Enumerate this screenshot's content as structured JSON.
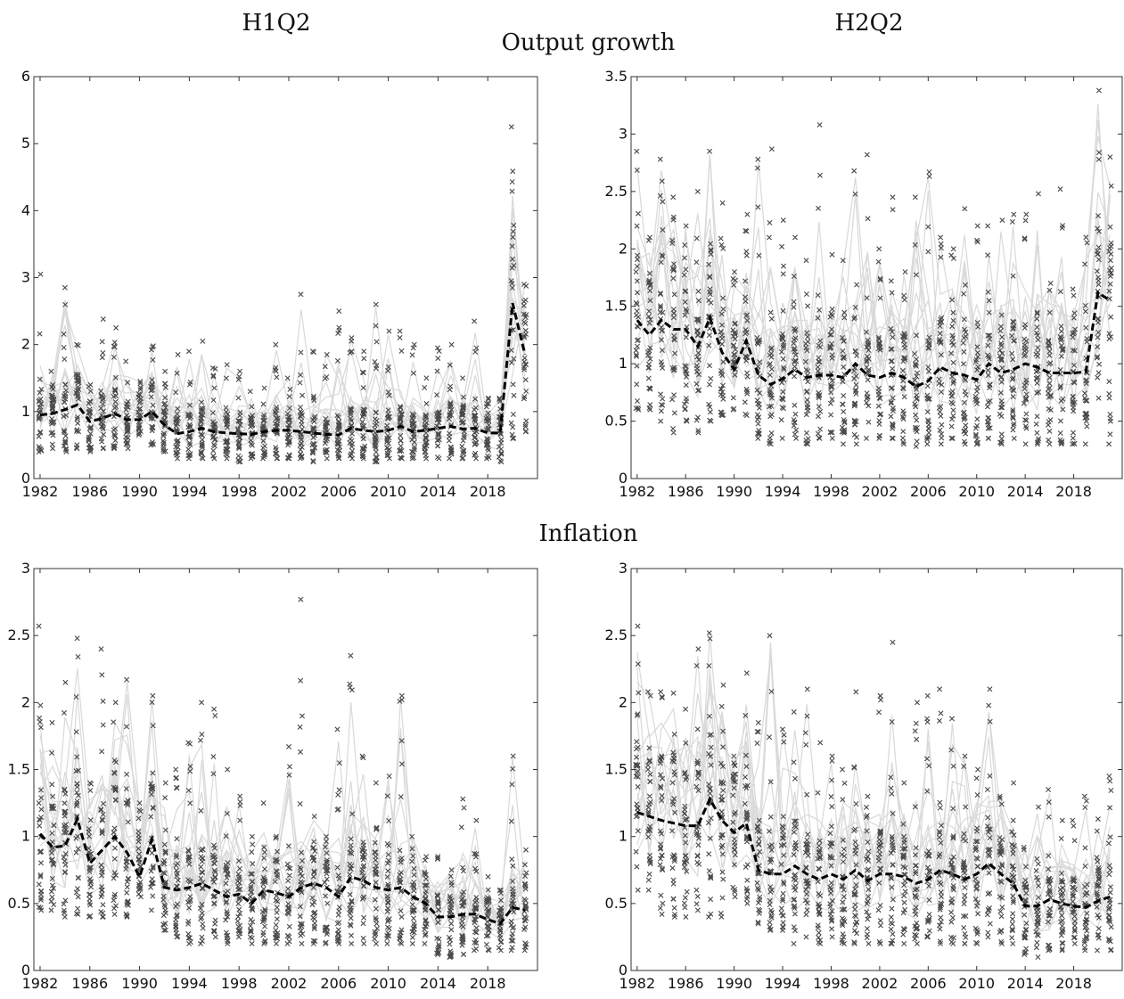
{
  "titles": {
    "col_left": "H1Q2",
    "col_right": "H2Q2",
    "row_top": "Output growth",
    "row_bottom": "Inflation"
  },
  "chart_data": [
    {
      "type": "line",
      "panel": "H1Q2 Output growth",
      "xlim": [
        1981.5,
        2022
      ],
      "ylim": [
        0,
        6
      ],
      "xticks": [
        "1982",
        "1986",
        "1990",
        "1994",
        "1998",
        "2002",
        "2006",
        "2010",
        "2014",
        "2018"
      ],
      "yticks": [
        "0",
        "1",
        "2",
        "3",
        "4",
        "5",
        "6"
      ],
      "x": [
        1982,
        1983,
        1984,
        1985,
        1986,
        1987,
        1988,
        1989,
        1990,
        1991,
        1992,
        1993,
        1994,
        1995,
        1996,
        1997,
        1998,
        1999,
        2000,
        2001,
        2002,
        2003,
        2004,
        2005,
        2006,
        2007,
        2008,
        2009,
        2010,
        2011,
        2012,
        2013,
        2014,
        2015,
        2016,
        2017,
        2018,
        2019,
        2020,
        2021
      ],
      "median": [
        0.95,
        0.97,
        1.03,
        1.1,
        0.85,
        0.9,
        0.97,
        0.88,
        0.88,
        1.0,
        0.8,
        0.67,
        0.7,
        0.75,
        0.7,
        0.68,
        0.67,
        0.66,
        0.7,
        0.72,
        0.72,
        0.7,
        0.68,
        0.66,
        0.65,
        0.75,
        0.72,
        0.7,
        0.72,
        0.78,
        0.7,
        0.72,
        0.75,
        0.78,
        0.74,
        0.75,
        0.68,
        0.68,
        2.62,
        1.85
      ],
      "low": [
        0.4,
        0.45,
        0.4,
        0.45,
        0.4,
        0.45,
        0.45,
        0.45,
        0.65,
        0.5,
        0.4,
        0.3,
        0.3,
        0.3,
        0.3,
        0.3,
        0.25,
        0.3,
        0.3,
        0.3,
        0.3,
        0.3,
        0.25,
        0.3,
        0.3,
        0.3,
        0.3,
        0.25,
        0.3,
        0.3,
        0.3,
        0.3,
        0.3,
        0.3,
        0.3,
        0.3,
        0.3,
        0.25,
        0.6,
        0.7
      ],
      "high": [
        3.05,
        1.6,
        2.85,
        2.0,
        1.4,
        2.38,
        2.25,
        1.75,
        1.45,
        1.98,
        1.6,
        1.85,
        1.9,
        2.05,
        1.65,
        1.7,
        1.6,
        1.3,
        1.35,
        2.0,
        1.5,
        2.75,
        1.9,
        1.85,
        2.5,
        2.1,
        1.9,
        2.6,
        2.2,
        2.2,
        2.0,
        1.5,
        1.95,
        2.0,
        1.5,
        2.35,
        1.2,
        1.2,
        5.25,
        2.9
      ]
    },
    {
      "type": "line",
      "panel": "H2Q2 Output growth",
      "xlim": [
        1981.5,
        2022
      ],
      "ylim": [
        0,
        3.5
      ],
      "xticks": [
        "1982",
        "1986",
        "1990",
        "1994",
        "1998",
        "2002",
        "2006",
        "2010",
        "2014",
        "2018"
      ],
      "yticks": [
        "0",
        "0.5",
        "1",
        "1.5",
        "2",
        "2.5",
        "3",
        "3.5"
      ],
      "x": [
        1982,
        1983,
        1984,
        1985,
        1986,
        1987,
        1988,
        1989,
        1990,
        1991,
        1992,
        1993,
        1994,
        1995,
        1996,
        1997,
        1998,
        1999,
        2000,
        2001,
        2002,
        2003,
        2004,
        2005,
        2006,
        2007,
        2008,
        2009,
        2010,
        2011,
        2012,
        2013,
        2014,
        2015,
        2016,
        2017,
        2018,
        2019,
        2020,
        2021
      ],
      "median": [
        1.38,
        1.25,
        1.38,
        1.3,
        1.3,
        1.15,
        1.4,
        1.1,
        0.95,
        1.2,
        0.9,
        0.82,
        0.87,
        0.95,
        0.88,
        0.9,
        0.9,
        0.88,
        1.0,
        0.9,
        0.88,
        0.92,
        0.88,
        0.8,
        0.85,
        0.97,
        0.92,
        0.9,
        0.86,
        1.0,
        0.92,
        0.95,
        1.0,
        0.97,
        0.92,
        0.92,
        0.92,
        0.93,
        1.62,
        1.55
      ],
      "low": [
        0.6,
        0.6,
        0.5,
        0.4,
        0.5,
        0.4,
        0.5,
        0.55,
        0.6,
        0.55,
        0.35,
        0.3,
        0.35,
        0.35,
        0.3,
        0.35,
        0.35,
        0.3,
        0.3,
        0.35,
        0.35,
        0.35,
        0.3,
        0.28,
        0.3,
        0.3,
        0.35,
        0.3,
        0.3,
        0.35,
        0.3,
        0.35,
        0.3,
        0.3,
        0.3,
        0.3,
        0.3,
        0.3,
        0.7,
        0.3
      ],
      "high": [
        2.85,
        2.1,
        2.78,
        2.45,
        2.2,
        2.5,
        2.85,
        2.4,
        1.8,
        2.3,
        2.78,
        2.87,
        2.25,
        2.1,
        1.9,
        3.08,
        1.95,
        1.9,
        2.68,
        2.82,
        2.0,
        2.45,
        1.8,
        2.45,
        2.67,
        2.1,
        2.0,
        2.35,
        2.2,
        2.2,
        2.25,
        2.3,
        2.3,
        2.48,
        1.7,
        2.52,
        1.65,
        2.1,
        3.38,
        2.8
      ]
    },
    {
      "type": "line",
      "panel": "H1Q2 Inflation",
      "xlim": [
        1981.5,
        2022
      ],
      "ylim": [
        0,
        3
      ],
      "xticks": [
        "1982",
        "1986",
        "1990",
        "1994",
        "1998",
        "2002",
        "2006",
        "2010",
        "2014",
        "2018"
      ],
      "yticks": [
        "0",
        "0.5",
        "1",
        "1.5",
        "2",
        "2.5",
        "3"
      ],
      "x": [
        1982,
        1983,
        1984,
        1985,
        1986,
        1987,
        1988,
        1989,
        1990,
        1991,
        1992,
        1993,
        1994,
        1995,
        1996,
        1997,
        1998,
        1999,
        2000,
        2001,
        2002,
        2003,
        2004,
        2005,
        2006,
        2007,
        2008,
        2009,
        2010,
        2011,
        2012,
        2013,
        2014,
        2015,
        2016,
        2017,
        2018,
        2019,
        2020,
        2021
      ],
      "median": [
        1.02,
        0.92,
        0.93,
        1.13,
        0.8,
        0.9,
        1.0,
        0.88,
        0.7,
        0.98,
        0.62,
        0.6,
        0.62,
        0.65,
        0.6,
        0.55,
        0.57,
        0.5,
        0.6,
        0.58,
        0.55,
        0.62,
        0.65,
        0.62,
        0.55,
        0.7,
        0.67,
        0.62,
        0.6,
        0.62,
        0.55,
        0.5,
        0.4,
        0.4,
        0.42,
        0.42,
        0.38,
        0.35,
        0.47,
        0.45
      ],
      "low": [
        0.45,
        0.45,
        0.4,
        0.42,
        0.4,
        0.4,
        0.42,
        0.4,
        0.55,
        0.45,
        0.3,
        0.25,
        0.2,
        0.2,
        0.25,
        0.2,
        0.25,
        0.2,
        0.2,
        0.2,
        0.2,
        0.2,
        0.2,
        0.2,
        0.2,
        0.2,
        0.2,
        0.2,
        0.2,
        0.2,
        0.2,
        0.2,
        0.12,
        0.1,
        0.12,
        0.15,
        0.15,
        0.15,
        0.15,
        0.15
      ],
      "high": [
        2.57,
        1.85,
        2.15,
        2.48,
        1.4,
        2.4,
        2.0,
        2.17,
        1.25,
        2.05,
        1.4,
        1.5,
        1.7,
        2.0,
        1.95,
        1.5,
        1.3,
        1.0,
        1.25,
        1.0,
        1.67,
        2.77,
        1.15,
        1.0,
        1.8,
        2.35,
        1.6,
        1.4,
        1.45,
        2.05,
        1.0,
        0.85,
        0.85,
        0.75,
        1.28,
        1.12,
        0.7,
        0.6,
        1.6,
        0.9
      ]
    },
    {
      "type": "line",
      "panel": "H2Q2 Inflation",
      "xlim": [
        1981.5,
        2022
      ],
      "ylim": [
        0,
        3
      ],
      "xticks": [
        "1982",
        "1986",
        "1990",
        "1994",
        "1998",
        "2002",
        "2006",
        "2010",
        "2014",
        "2018"
      ],
      "yticks": [
        "0",
        "0.5",
        "1",
        "1.5",
        "2",
        "2.5",
        "3"
      ],
      "x": [
        1982,
        1983,
        1984,
        1985,
        1986,
        1987,
        1988,
        1989,
        1990,
        1991,
        1992,
        1993,
        1994,
        1995,
        1996,
        1997,
        1998,
        1999,
        2000,
        2001,
        2002,
        2003,
        2004,
        2005,
        2006,
        2007,
        2008,
        2009,
        2010,
        2011,
        2012,
        2013,
        2014,
        2015,
        2016,
        2017,
        2018,
        2019,
        2020,
        2021
      ],
      "median": [
        1.18,
        1.15,
        1.12,
        1.1,
        1.08,
        1.08,
        1.28,
        1.12,
        1.03,
        1.1,
        0.75,
        0.72,
        0.72,
        0.78,
        0.72,
        0.68,
        0.72,
        0.68,
        0.75,
        0.67,
        0.72,
        0.72,
        0.7,
        0.65,
        0.68,
        0.75,
        0.72,
        0.68,
        0.72,
        0.8,
        0.72,
        0.65,
        0.48,
        0.48,
        0.53,
        0.5,
        0.48,
        0.47,
        0.52,
        0.55
      ],
      "low": [
        0.6,
        0.6,
        0.42,
        0.4,
        0.4,
        0.45,
        0.4,
        0.4,
        0.55,
        0.5,
        0.35,
        0.3,
        0.3,
        0.2,
        0.25,
        0.2,
        0.25,
        0.2,
        0.2,
        0.2,
        0.2,
        0.2,
        0.2,
        0.2,
        0.25,
        0.2,
        0.2,
        0.2,
        0.2,
        0.25,
        0.2,
        0.2,
        0.12,
        0.1,
        0.15,
        0.15,
        0.2,
        0.15,
        0.15,
        0.15
      ],
      "high": [
        2.57,
        2.08,
        2.08,
        2.07,
        1.95,
        2.4,
        2.52,
        2.13,
        1.6,
        2.22,
        1.85,
        2.5,
        1.8,
        1.93,
        2.1,
        1.7,
        1.6,
        1.5,
        2.08,
        1.3,
        2.05,
        2.45,
        1.4,
        2.0,
        2.05,
        2.1,
        1.88,
        1.6,
        1.5,
        2.1,
        1.3,
        1.4,
        0.92,
        1.22,
        1.35,
        1.12,
        1.12,
        1.3,
        1.13,
        1.45
      ]
    }
  ]
}
